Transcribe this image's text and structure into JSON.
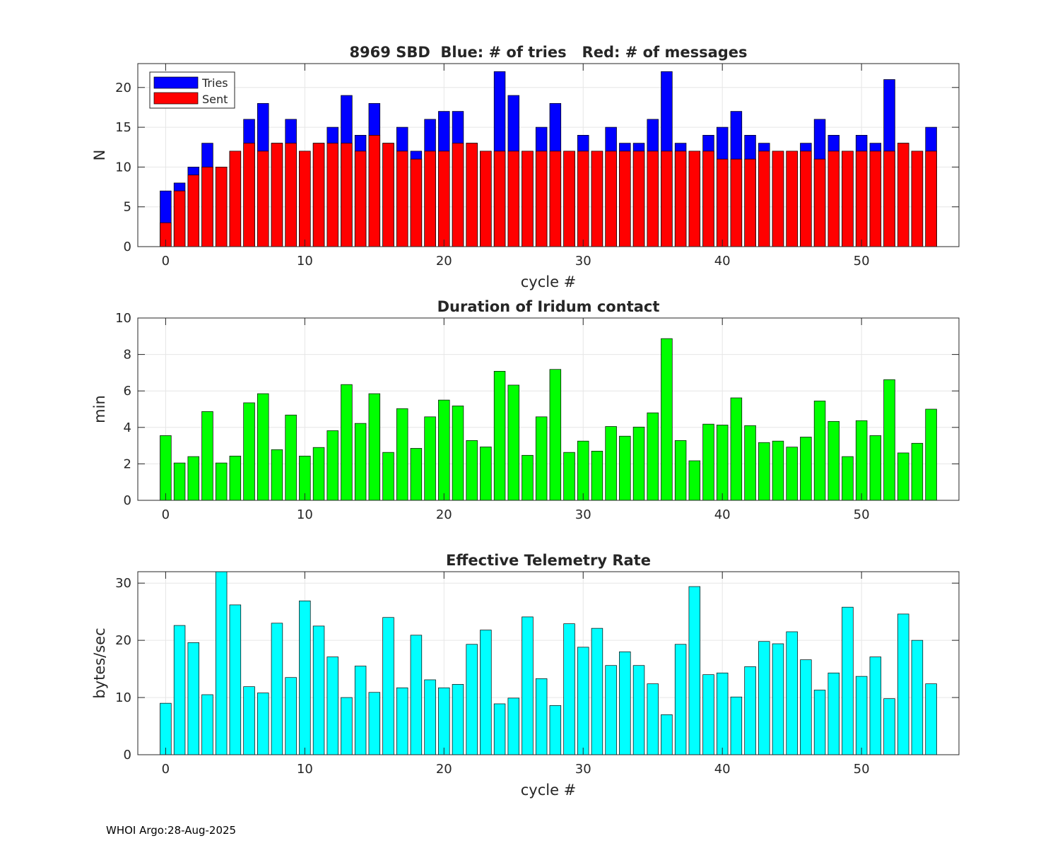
{
  "footer": "WHOI Argo:28-Aug-2025",
  "colors": {
    "tries": "#0000ff",
    "sent": "#ff0000",
    "duration": "#00ff00",
    "rate": "#00ffff",
    "edge": "#000000",
    "grid": "#e6e6e6"
  },
  "chart_data": [
    {
      "type": "bar",
      "title": "8969 SBD  Blue: # of tries   Red: # of messages",
      "xlabel": "cycle #",
      "ylabel": "N",
      "xlim": [
        -2,
        57
      ],
      "ylim": [
        0,
        23
      ],
      "xticks": [
        0,
        10,
        20,
        30,
        40,
        50
      ],
      "yticks": [
        0,
        5,
        10,
        15,
        20
      ],
      "grid": true,
      "legend": {
        "placement": "top-left",
        "entries": [
          "Tries",
          "Sent"
        ]
      },
      "x": [
        0,
        1,
        2,
        3,
        4,
        5,
        6,
        7,
        8,
        9,
        10,
        11,
        12,
        13,
        14,
        15,
        16,
        17,
        18,
        19,
        20,
        21,
        22,
        23,
        24,
        25,
        26,
        27,
        28,
        29,
        30,
        31,
        32,
        33,
        34,
        35,
        36,
        37,
        38,
        39,
        40,
        41,
        42,
        43,
        44,
        45,
        46,
        47,
        48,
        49,
        50,
        51,
        52,
        53,
        54,
        55
      ],
      "series": [
        {
          "name": "Tries",
          "values": [
            7,
            8,
            10,
            13,
            10,
            12,
            16,
            18,
            13,
            16,
            12,
            13,
            15,
            19,
            14,
            18,
            13,
            15,
            12,
            16,
            17,
            17,
            13,
            12,
            22,
            19,
            12,
            15,
            18,
            12,
            14,
            12,
            15,
            13,
            13,
            16,
            22,
            13,
            12,
            14,
            15,
            17,
            14,
            13,
            12,
            12,
            13,
            16,
            14,
            12,
            14,
            13,
            21,
            13,
            12,
            15
          ]
        },
        {
          "name": "Sent",
          "values": [
            3,
            7,
            9,
            10,
            10,
            12,
            13,
            12,
            13,
            13,
            12,
            13,
            13,
            13,
            12,
            14,
            13,
            12,
            11,
            12,
            12,
            13,
            13,
            12,
            12,
            12,
            12,
            12,
            12,
            12,
            12,
            12,
            12,
            12,
            12,
            12,
            12,
            12,
            12,
            12,
            11,
            11,
            11,
            12,
            12,
            12,
            12,
            11,
            12,
            12,
            12,
            12,
            12,
            13,
            12,
            12
          ]
        }
      ]
    },
    {
      "type": "bar",
      "title": "Duration of Iridum contact",
      "xlabel": "",
      "ylabel": "min",
      "xlim": [
        -2,
        57
      ],
      "ylim": [
        0,
        10
      ],
      "xticks": [
        0,
        10,
        20,
        30,
        40,
        50
      ],
      "yticks": [
        0,
        2,
        4,
        6,
        8,
        10
      ],
      "grid": true,
      "x": [
        0,
        1,
        2,
        3,
        4,
        5,
        6,
        7,
        8,
        9,
        10,
        11,
        12,
        13,
        14,
        15,
        16,
        17,
        18,
        19,
        20,
        21,
        22,
        23,
        24,
        25,
        26,
        27,
        28,
        29,
        30,
        31,
        32,
        33,
        34,
        35,
        36,
        37,
        38,
        39,
        40,
        41,
        42,
        43,
        44,
        45,
        46,
        47,
        48,
        49,
        50,
        51,
        52,
        53,
        54,
        55
      ],
      "values": [
        3.55,
        2.05,
        2.4,
        4.87,
        2.05,
        2.43,
        5.35,
        5.85,
        2.78,
        4.68,
        2.43,
        2.9,
        3.82,
        6.35,
        4.22,
        5.85,
        2.63,
        5.03,
        2.85,
        4.58,
        5.5,
        5.18,
        3.28,
        2.93,
        7.08,
        6.32,
        2.47,
        4.58,
        7.18,
        2.63,
        3.25,
        2.7,
        4.05,
        3.52,
        4.02,
        4.8,
        8.87,
        3.28,
        2.17,
        4.18,
        4.13,
        5.62,
        4.1,
        3.17,
        3.25,
        2.92,
        3.47,
        5.45,
        4.33,
        2.4,
        4.37,
        3.55,
        6.62,
        2.6,
        3.13,
        5.0
      ]
    },
    {
      "type": "bar",
      "title": "Effective Telemetry Rate",
      "xlabel": "cycle #",
      "ylabel": "bytes/sec",
      "xlim": [
        -2,
        57
      ],
      "ylim": [
        0,
        32
      ],
      "xticks": [
        0,
        10,
        20,
        30,
        40,
        50
      ],
      "yticks": [
        0,
        10,
        20,
        30
      ],
      "grid": true,
      "x": [
        0,
        1,
        2,
        3,
        4,
        5,
        6,
        7,
        8,
        9,
        10,
        11,
        12,
        13,
        14,
        15,
        16,
        17,
        18,
        19,
        20,
        21,
        22,
        23,
        24,
        25,
        26,
        27,
        28,
        29,
        30,
        31,
        32,
        33,
        34,
        35,
        36,
        37,
        38,
        39,
        40,
        41,
        42,
        43,
        44,
        45,
        46,
        47,
        48,
        49,
        50,
        51,
        52,
        53,
        54,
        55
      ],
      "values": [
        9.0,
        22.6,
        19.6,
        10.5,
        32.0,
        26.2,
        11.9,
        10.8,
        23.0,
        13.5,
        26.9,
        22.5,
        17.1,
        10.0,
        15.5,
        10.9,
        24.0,
        11.7,
        20.9,
        13.1,
        11.7,
        12.3,
        19.3,
        21.8,
        8.9,
        9.9,
        24.1,
        13.3,
        8.6,
        22.9,
        18.8,
        22.1,
        15.6,
        18.0,
        15.6,
        12.4,
        7.0,
        19.3,
        29.4,
        14.0,
        14.3,
        10.1,
        15.4,
        19.8,
        19.4,
        21.5,
        16.6,
        11.3,
        14.3,
        25.8,
        13.7,
        17.1,
        9.8,
        24.6,
        20.0,
        12.4
      ]
    }
  ]
}
